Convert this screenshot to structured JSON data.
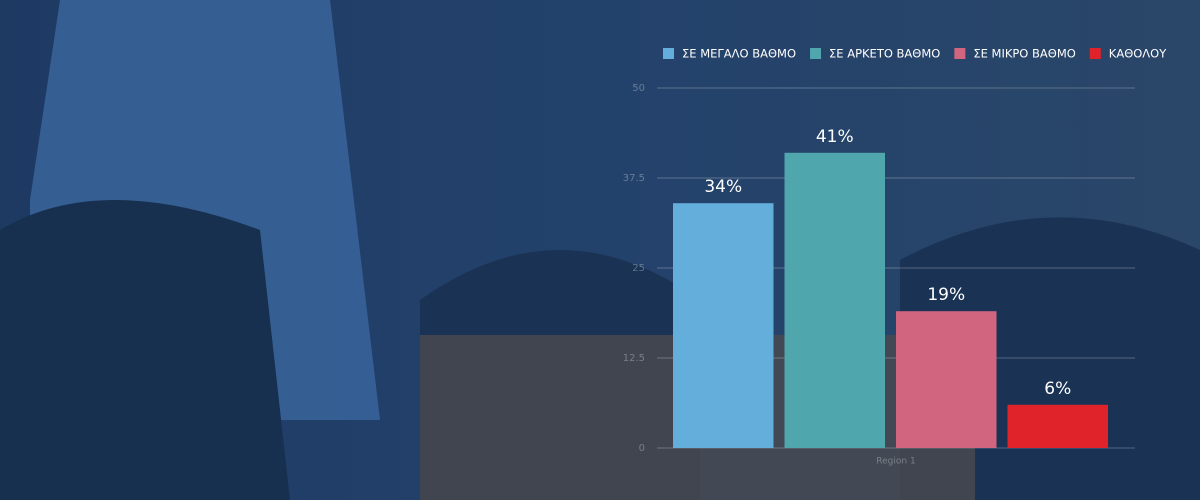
{
  "chart_data": {
    "type": "bar",
    "categories": [
      "Region 1"
    ],
    "series": [
      {
        "name": "ΣΕ ΜΕΓΑΛΟ ΒΑΘΜΟ",
        "color": "#64aedc",
        "values": [
          34
        ],
        "value_labels": [
          "34%"
        ]
      },
      {
        "name": "ΣΕ ΑΡΚΕΤΟ ΒΑΘΜΟ",
        "color": "#4fa6ad",
        "values": [
          41
        ],
        "value_labels": [
          "41%"
        ]
      },
      {
        "name": "ΣΕ ΜΙΚΡΟ ΒΑΘΜΟ",
        "color": "#d16580",
        "values": [
          19
        ],
        "value_labels": [
          "19%"
        ]
      },
      {
        "name": "ΚΑΘΟΛΟΥ",
        "color": "#e0232a",
        "values": [
          6
        ],
        "value_labels": [
          "6%"
        ]
      }
    ],
    "ylim": [
      0,
      50
    ],
    "yticks": [
      0,
      12.5,
      25,
      37.5,
      50
    ],
    "grid": true
  }
}
